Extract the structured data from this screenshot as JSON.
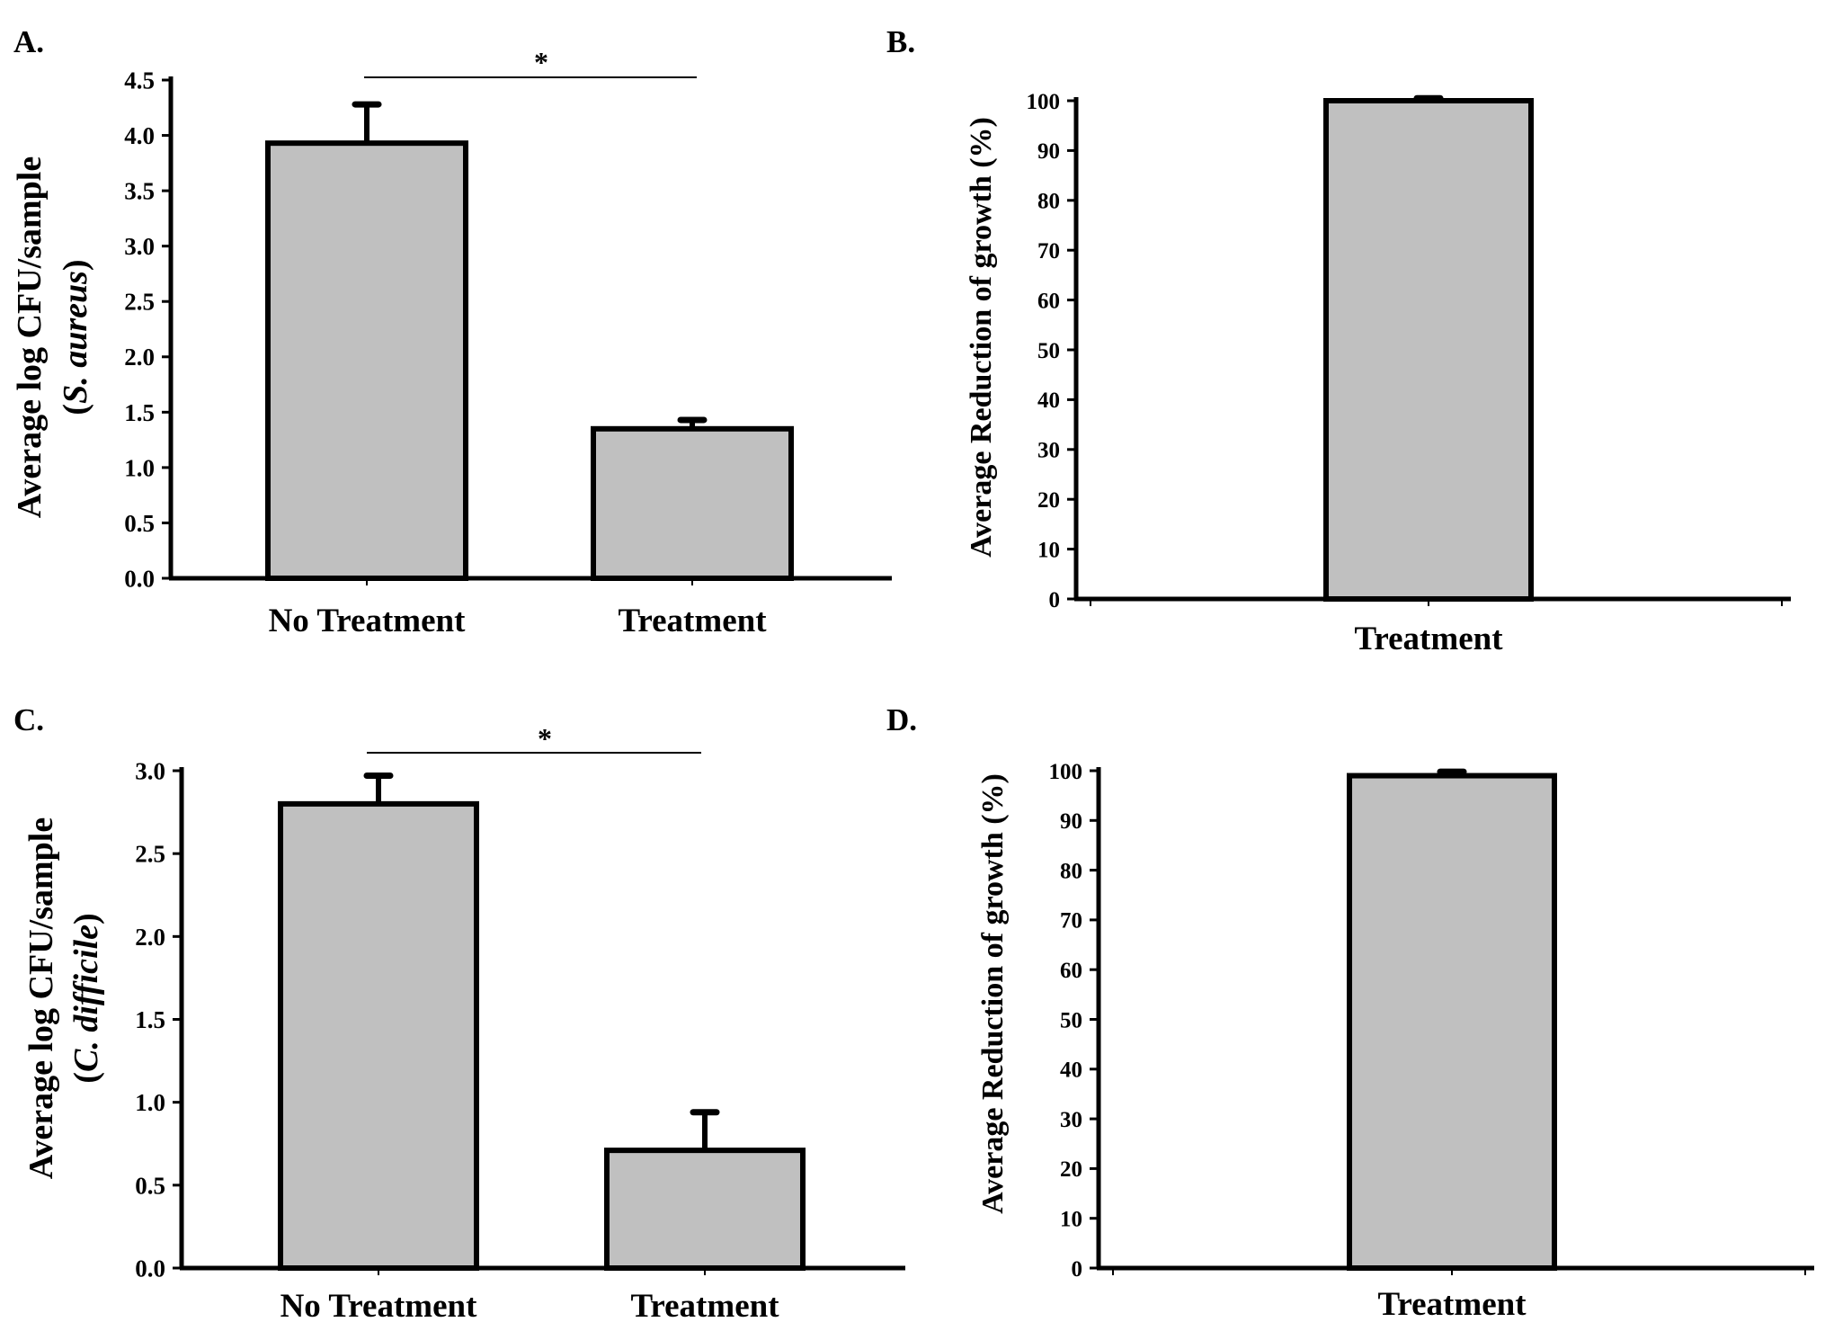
{
  "chart_data": [
    {
      "panel": "A.",
      "type": "bar",
      "categories": [
        "No Treatment",
        "Treatment"
      ],
      "values": [
        3.93,
        1.35
      ],
      "errors": [
        0.35,
        0.08
      ],
      "ylabel": "Average log CFU/sample",
      "ylabel_species": "S. aureus",
      "ylim": [
        0,
        4.5
      ],
      "yticks": [
        "0.0",
        "0.5",
        "1.0",
        "1.5",
        "2.0",
        "2.5",
        "3.0",
        "3.5",
        "4.0",
        "4.5"
      ],
      "significance": "*",
      "bar_color": "#c0c0c0"
    },
    {
      "panel": "B.",
      "type": "bar",
      "categories": [
        "Treatment"
      ],
      "values": [
        100
      ],
      "errors": [
        0.5
      ],
      "ylabel": "Average Reduction of growth (%)",
      "ylim": [
        0,
        100
      ],
      "yticks": [
        "0",
        "10",
        "20",
        "30",
        "40",
        "50",
        "60",
        "70",
        "80",
        "90",
        "100"
      ],
      "bar_color": "#c0c0c0"
    },
    {
      "panel": "C.",
      "type": "bar",
      "categories": [
        "No Treatment",
        "Treatment"
      ],
      "values": [
        2.8,
        0.71
      ],
      "errors": [
        0.17,
        0.23
      ],
      "ylabel": "Average log CFU/sample",
      "ylabel_species": "C. difficile",
      "ylim": [
        0,
        3.0
      ],
      "yticks": [
        "0.0",
        "0.5",
        "1.0",
        "1.5",
        "2.0",
        "2.5",
        "3.0"
      ],
      "significance": "*",
      "bar_color": "#c0c0c0"
    },
    {
      "panel": "D.",
      "type": "bar",
      "categories": [
        "Treatment"
      ],
      "values": [
        99
      ],
      "errors": [
        0.8
      ],
      "ylabel": "Average Reduction of growth (%)",
      "ylim": [
        0,
        100
      ],
      "yticks": [
        "0",
        "10",
        "20",
        "30",
        "40",
        "50",
        "60",
        "70",
        "80",
        "90",
        "100"
      ],
      "bar_color": "#c0c0c0"
    }
  ]
}
